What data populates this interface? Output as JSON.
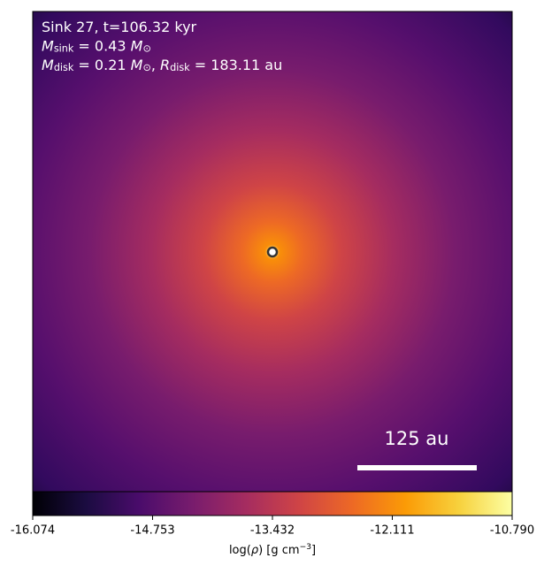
{
  "chart_data": {
    "type": "image",
    "annotations": [
      [
        {
          "t": "Sink 27, t=106.32 kyr"
        }
      ],
      [
        {
          "t": "M",
          "italic": true
        },
        {
          "t": "sink",
          "sub": true
        },
        {
          "t": " = 0.43 "
        },
        {
          "t": "M",
          "italic": true
        },
        {
          "t": "⊙",
          "sub": true
        }
      ],
      [
        {
          "t": "M",
          "italic": true
        },
        {
          "t": "disk",
          "sub": true
        },
        {
          "t": " = 0.21 "
        },
        {
          "t": "M",
          "italic": true
        },
        {
          "t": "⊙",
          "sub": true
        },
        {
          "t": ", "
        },
        {
          "t": "R",
          "italic": true
        },
        {
          "t": "disk",
          "sub": true
        },
        {
          "t": " = 183.11 au"
        }
      ]
    ],
    "scale_bar": {
      "label": "125 au"
    },
    "colormap": "inferno",
    "clim": [
      -16.074,
      -10.79
    ],
    "cticks": [
      -16.074,
      -14.753,
      -13.432,
      -12.111,
      {
        "value": -10.79,
        "label": "-10.790"
      }
    ],
    "colorbar_label": [
      {
        "t": "log("
      },
      {
        "t": "ρ",
        "italic": true
      },
      {
        "t": ") [g cm"
      },
      {
        "t": "−3",
        "sup": true
      },
      {
        "t": "]"
      }
    ]
  }
}
